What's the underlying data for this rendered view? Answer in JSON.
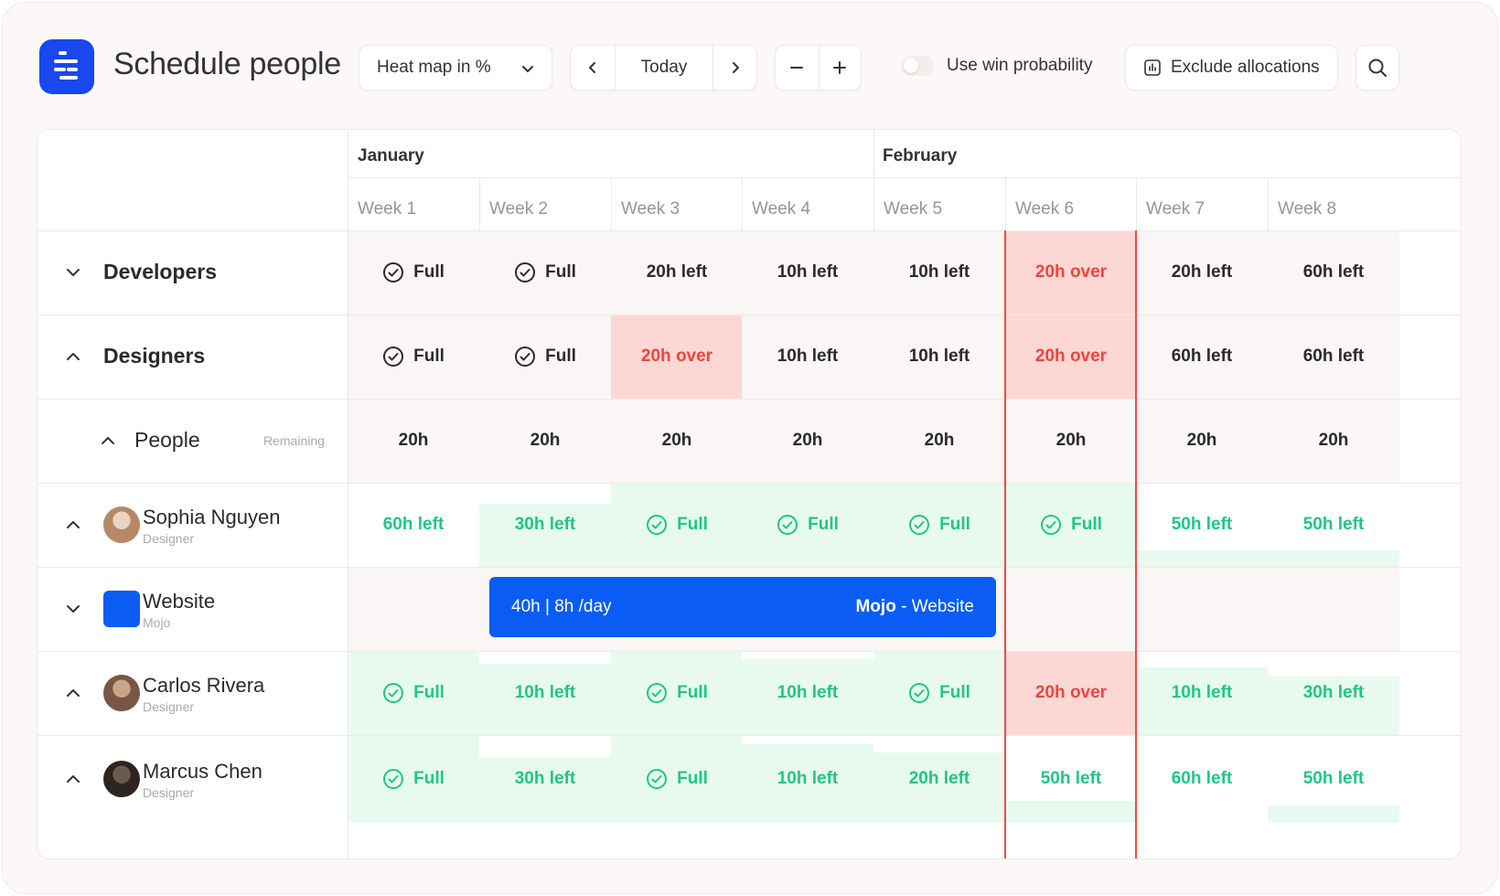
{
  "header": {
    "title": "Schedule people",
    "view_select": "Heat map in %",
    "today_label": "Today",
    "toggle_label": "Use win probability",
    "exclude_label": "Exclude allocations"
  },
  "colors": {
    "brand": "#1947f0",
    "booking": "#0a5cf5",
    "over_bg": "#fdd7d4",
    "over_text": "#f0443d",
    "green_bg": "#e8faf0",
    "green_text": "#1ec785"
  },
  "calendar": {
    "months": [
      "January",
      "February"
    ],
    "weeks": [
      "Week 1",
      "Week 2",
      "Week 3",
      "Week 4",
      "Week 5",
      "Week 6",
      "Week 7",
      "Week 8"
    ]
  },
  "rows": {
    "developers": {
      "label": "Developers",
      "cells": [
        "Full",
        "Full",
        "20h left",
        "10h left",
        "10h left",
        "20h over",
        "20h left",
        "60h left"
      ]
    },
    "designers": {
      "label": "Designers",
      "cells": [
        "Full",
        "Full",
        "20h over",
        "10h left",
        "10h left",
        "20h over",
        "60h left",
        "60h left"
      ]
    },
    "people": {
      "label": "People",
      "sub_label": "Remaining",
      "cells": [
        "20h",
        "20h",
        "20h",
        "20h",
        "20h",
        "20h",
        "20h",
        "20h"
      ]
    },
    "sophia": {
      "name": "Sophia Nguyen",
      "role": "Designer",
      "cells": [
        "60h left",
        "30h left",
        "Full",
        "Full",
        "Full",
        "Full",
        "50h left",
        "50h left"
      ],
      "fill": [
        0.0,
        0.75,
        1.0,
        1.0,
        1.0,
        1.0,
        0.2,
        0.2
      ]
    },
    "website": {
      "name": "Website",
      "client": "Mojo",
      "booking_left": "40h | 8h /day",
      "booking_client": "Mojo",
      "booking_sep": " - ",
      "booking_project": "Website"
    },
    "carlos": {
      "name": "Carlos Rivera",
      "role": "Designer",
      "cells": [
        "Full",
        "10h left",
        "Full",
        "10h left",
        "Full",
        "20h over",
        "10h left",
        "30h left"
      ],
      "fill": [
        1.0,
        0.85,
        1.0,
        0.9,
        1.0,
        1.0,
        0.8,
        0.7
      ]
    },
    "marcus": {
      "name": "Marcus Chen",
      "role": "Designer",
      "cells": [
        "Full",
        "30h left",
        "Full",
        "10h left",
        "20h left",
        "50h left",
        "60h left",
        "50h left"
      ],
      "fill": [
        1.0,
        0.75,
        1.0,
        0.9,
        0.8,
        0.25,
        0.0,
        0.2
      ]
    }
  }
}
